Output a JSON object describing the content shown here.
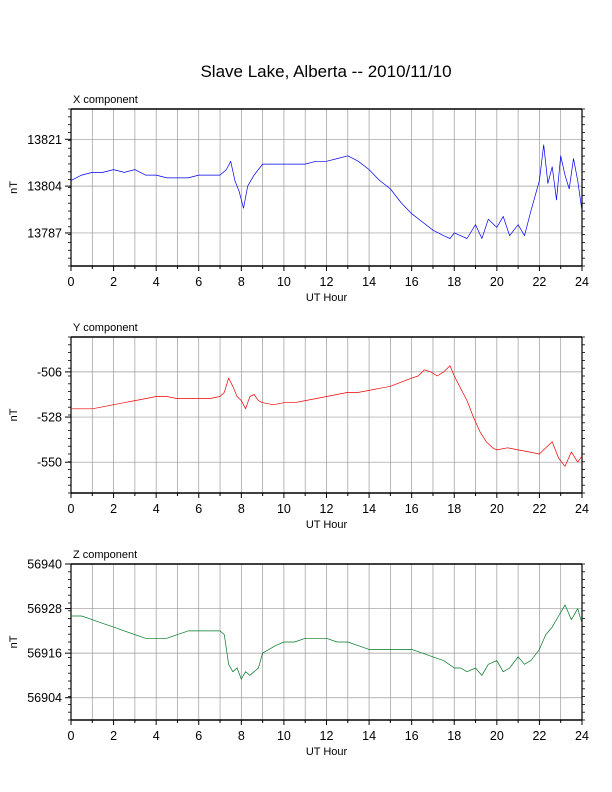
{
  "title": "Slave Lake, Alberta -- 2010/11/10",
  "chart_data": [
    {
      "type": "line",
      "panel_label": "X component",
      "xlabel": "UT Hour",
      "ylabel": "nT",
      "xlim": [
        0,
        24
      ],
      "ylim": [
        13775,
        13832
      ],
      "xticks": [
        0,
        2,
        4,
        6,
        8,
        10,
        12,
        14,
        16,
        18,
        20,
        22,
        24
      ],
      "yticks": [
        13821,
        13804,
        13787
      ],
      "grid": true,
      "line_color": "#0000ee",
      "series": [
        {
          "x": [
            0,
            0.5,
            1,
            1.5,
            2,
            2.5,
            3,
            3.5,
            4,
            4.5,
            5,
            5.5,
            6,
            6.5,
            7,
            7.3,
            7.5,
            7.7,
            7.9,
            8.1,
            8.3,
            8.6,
            9,
            9.5,
            10,
            10.5,
            11,
            11.5,
            12,
            12.5,
            13,
            13.5,
            14,
            14.5,
            15,
            15.5,
            16,
            16.5,
            17,
            17.5,
            17.8,
            18,
            18.3,
            18.6,
            19,
            19.3,
            19.6,
            20,
            20.3,
            20.6,
            21,
            21.3,
            21.6,
            22,
            22.2,
            22.4,
            22.6,
            22.8,
            23,
            23.2,
            23.4,
            23.6,
            23.8,
            24
          ],
          "values": [
            13806,
            13808,
            13809,
            13809,
            13810,
            13809,
            13810,
            13808,
            13808,
            13807,
            13807,
            13807,
            13808,
            13808,
            13808,
            13810,
            13813,
            13806,
            13802,
            13796,
            13804,
            13808,
            13812,
            13812,
            13812,
            13812,
            13812,
            13813,
            13813,
            13814,
            13815,
            13813,
            13810,
            13806,
            13803,
            13798,
            13794,
            13791,
            13788,
            13786,
            13785,
            13787,
            13786,
            13785,
            13790,
            13785,
            13792,
            13789,
            13793,
            13786,
            13790,
            13786,
            13795,
            13806,
            13819,
            13805,
            13811,
            13799,
            13815,
            13808,
            13803,
            13814,
            13806,
            13795
          ]
        }
      ]
    },
    {
      "type": "line",
      "panel_label": "Y component",
      "xlabel": "UT Hour",
      "ylabel": "nT",
      "xlim": [
        0,
        24
      ],
      "ylim": [
        -565,
        -489
      ],
      "xticks": [
        0,
        2,
        4,
        6,
        8,
        10,
        12,
        14,
        16,
        18,
        20,
        22,
        24
      ],
      "yticks": [
        -506,
        -528,
        -550
      ],
      "grid": true,
      "line_color": "#ee0000",
      "series": [
        {
          "x": [
            0,
            0.5,
            1,
            1.5,
            2,
            2.5,
            3,
            3.5,
            4,
            4.5,
            5,
            5.5,
            6,
            6.5,
            7,
            7.2,
            7.4,
            7.6,
            7.8,
            8,
            8.2,
            8.4,
            8.6,
            8.8,
            9,
            9.5,
            10,
            10.5,
            11,
            11.5,
            12,
            12.5,
            13,
            13.5,
            14,
            14.5,
            15,
            15.5,
            16,
            16.3,
            16.6,
            16.9,
            17.2,
            17.5,
            17.8,
            18,
            18.3,
            18.6,
            18.9,
            19.2,
            19.5,
            19.8,
            20,
            20.5,
            21,
            21.5,
            22,
            22.3,
            22.6,
            22.9,
            23.2,
            23.5,
            23.8,
            24
          ],
          "values": [
            -524,
            -524,
            -524,
            -523,
            -522,
            -521,
            -520,
            -519,
            -518,
            -518,
            -519,
            -519,
            -519,
            -519,
            -518,
            -516,
            -509,
            -513,
            -518,
            -520,
            -524,
            -518,
            -517,
            -520,
            -521,
            -522,
            -521,
            -521,
            -520,
            -519,
            -518,
            -517,
            -516,
            -516,
            -515,
            -514,
            -513,
            -511,
            -509,
            -508,
            -505,
            -506,
            -508,
            -506,
            -503,
            -508,
            -514,
            -520,
            -528,
            -535,
            -540,
            -543,
            -544,
            -543,
            -544,
            -545,
            -546,
            -543,
            -540,
            -548,
            -552,
            -545,
            -550,
            -547
          ]
        }
      ]
    },
    {
      "type": "line",
      "panel_label": "Z component",
      "xlabel": "UT Hour",
      "ylabel": "nT",
      "xlim": [
        0,
        24
      ],
      "ylim": [
        56898,
        56940
      ],
      "xticks": [
        0,
        2,
        4,
        6,
        8,
        10,
        12,
        14,
        16,
        18,
        20,
        22,
        24
      ],
      "yticks": [
        56940,
        56928,
        56916,
        56904
      ],
      "grid": true,
      "line_color": "#007722",
      "series": [
        {
          "x": [
            0,
            0.5,
            1,
            1.5,
            2,
            2.5,
            3,
            3.5,
            4,
            4.5,
            5,
            5.5,
            6,
            6.5,
            7,
            7.2,
            7.4,
            7.6,
            7.8,
            8,
            8.2,
            8.4,
            8.6,
            8.8,
            9,
            9.3,
            9.6,
            10,
            10.5,
            11,
            11.5,
            12,
            12.5,
            13,
            13.5,
            14,
            14.5,
            15,
            15.5,
            16,
            16.5,
            17,
            17.5,
            18,
            18.3,
            18.6,
            19,
            19.3,
            19.6,
            20,
            20.3,
            20.6,
            21,
            21.3,
            21.6,
            22,
            22.3,
            22.6,
            22.9,
            23.2,
            23.5,
            23.8,
            24
          ],
          "values": [
            56926,
            56926,
            56925,
            56924,
            56923,
            56922,
            56921,
            56920,
            56920,
            56920,
            56921,
            56922,
            56922,
            56922,
            56922,
            56921,
            56913,
            56911,
            56912,
            56909,
            56911,
            56910,
            56911,
            56912,
            56916,
            56917,
            56918,
            56919,
            56919,
            56920,
            56920,
            56920,
            56919,
            56919,
            56918,
            56917,
            56917,
            56917,
            56917,
            56917,
            56916,
            56915,
            56914,
            56912,
            56912,
            56911,
            56912,
            56910,
            56913,
            56914,
            56911,
            56912,
            56915,
            56913,
            56914,
            56917,
            56921,
            56923,
            56926,
            56929,
            56925,
            56928,
            56924
          ]
        }
      ]
    }
  ]
}
